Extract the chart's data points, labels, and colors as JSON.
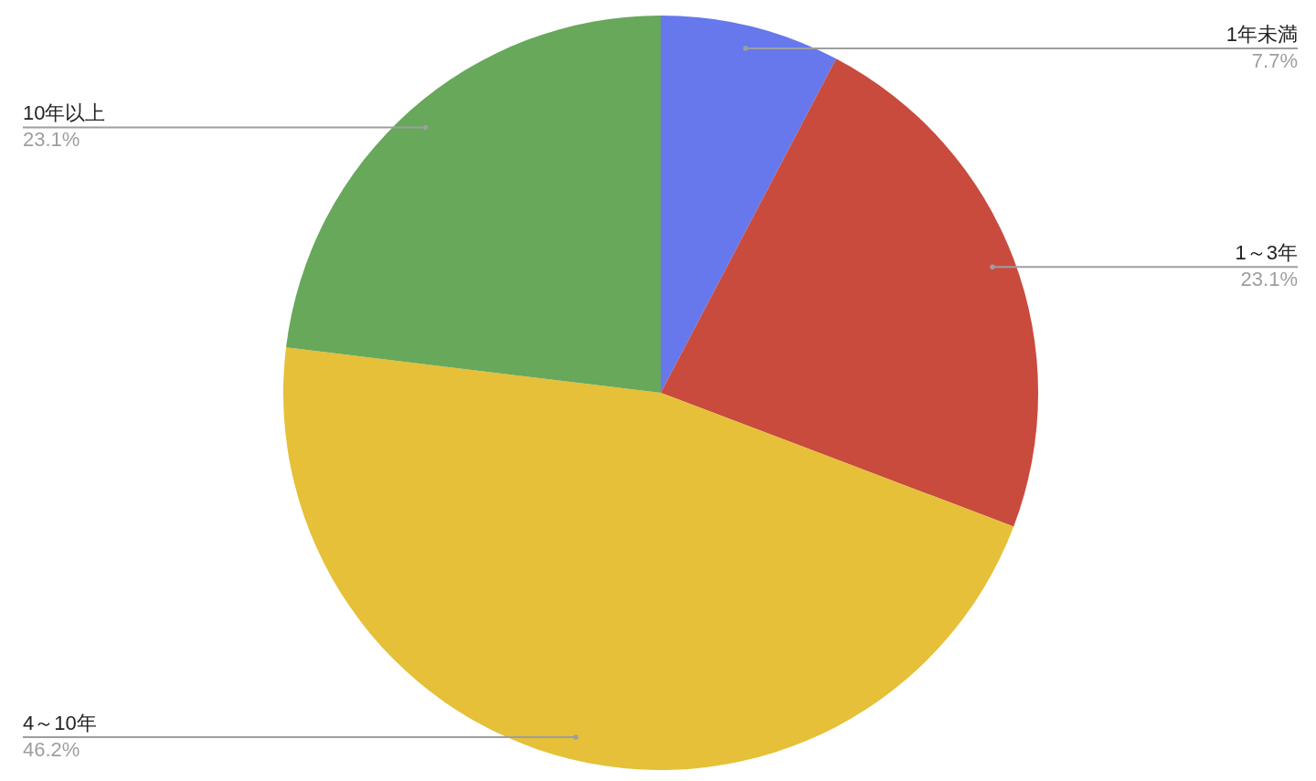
{
  "chart_data": {
    "type": "pie",
    "categories": [
      "1年未満",
      "1～3年",
      "4～10年",
      "10年以上"
    ],
    "values": [
      7.7,
      23.1,
      46.2,
      23.1
    ],
    "colors": [
      "#6678ec",
      "#c84b3e",
      "#e5c038",
      "#67a85a"
    ],
    "value_labels": [
      "7.7%",
      "23.1%",
      "46.2%",
      "23.1%"
    ]
  }
}
